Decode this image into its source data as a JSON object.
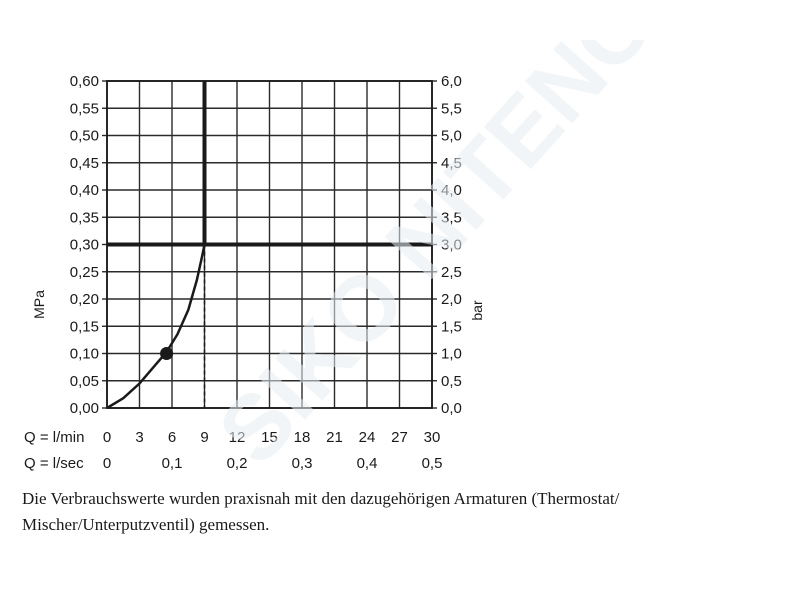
{
  "chart_data": {
    "type": "line",
    "left_axis": {
      "label": "MPa",
      "ylim": [
        0,
        0.6
      ],
      "ticks": [
        "0,00",
        "0,05",
        "0,10",
        "0,15",
        "0,20",
        "0,25",
        "0,30",
        "0,35",
        "0,40",
        "0,45",
        "0,50",
        "0,55",
        "0,60"
      ]
    },
    "right_axis": {
      "label": "bar",
      "ylim": [
        0,
        6.0
      ],
      "ticks": [
        "0,0",
        "0,5",
        "1,0",
        "1,5",
        "2,0",
        "2,5",
        "3,0",
        "3,5",
        "4,0",
        "4,5",
        "5,0",
        "5,5",
        "6,0"
      ]
    },
    "x_axis_lmin": {
      "label": "Q = l/min",
      "xlim": [
        0,
        30
      ],
      "ticks": [
        "0",
        "3",
        "6",
        "9",
        "12",
        "15",
        "18",
        "21",
        "24",
        "27",
        "30"
      ]
    },
    "x_axis_lsec": {
      "label": "Q = l/sec",
      "ticks": [
        "0",
        "0,1",
        "0,2",
        "0,3",
        "0,4",
        "0,5"
      ]
    },
    "grid": true,
    "series": [
      {
        "x_lmin": [
          0,
          1.5,
          3,
          4.5,
          5.5,
          6.5,
          7.5,
          8.3,
          8.8,
          9.0,
          9.0
        ],
        "y_mpa": [
          0.0,
          0.018,
          0.045,
          0.08,
          0.103,
          0.135,
          0.18,
          0.235,
          0.28,
          0.3,
          0.6
        ]
      }
    ],
    "highlight_point": {
      "x_lmin": 5.5,
      "y_mpa": 0.1
    },
    "reference_line_mpa": 0.3,
    "reference_flow_lmin": 9
  },
  "caption": {
    "line1": "Die Verbrauchswerte wurden praxisnah mit den dazugehörigen Armaturen (Thermostat/",
    "line2": "Mischer/Unterputzventil) gemessen."
  },
  "watermark_text": "SIKO NITENO"
}
